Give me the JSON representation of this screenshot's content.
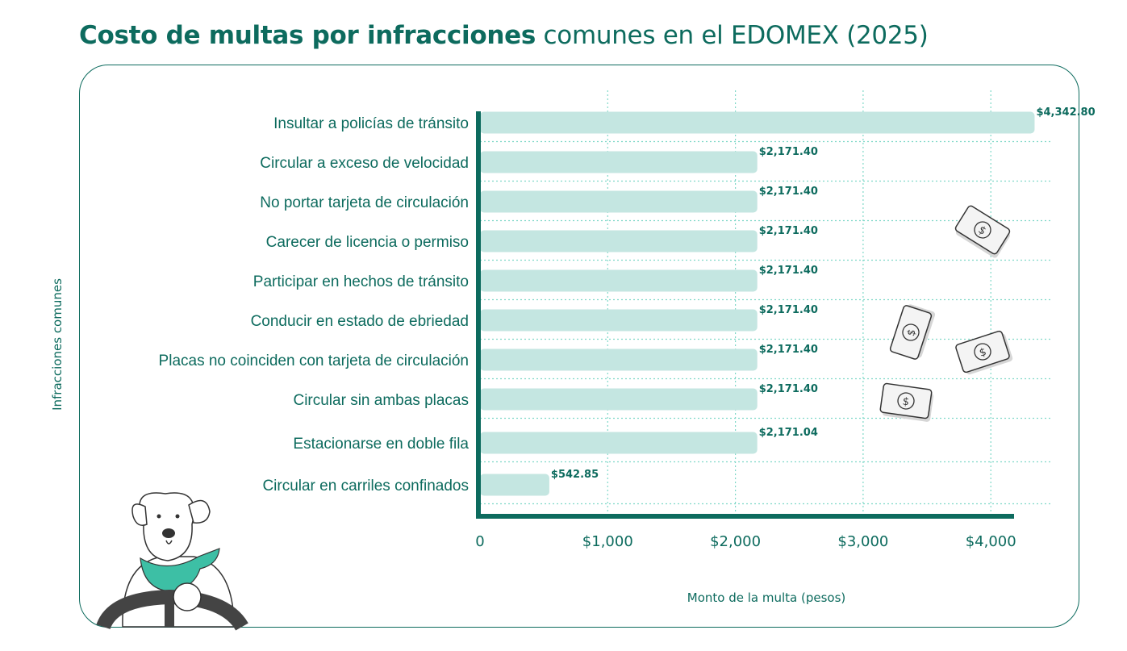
{
  "title_bold": "Costo de multas por infracciones",
  "title_rest": " comunes en el EDOMEX (2025)",
  "colors": {
    "accent": "#0d6b5e",
    "bar": "#c4e6e1",
    "grid": "#7fd8c8",
    "scarf": "#3dbfa5"
  },
  "chart_data": {
    "type": "bar",
    "orientation": "horizontal",
    "title": "Costo de multas por infracciones comunes en el EDOMEX (2025)",
    "xlabel": "Monto de la multa (pesos)",
    "ylabel": "Infracciones comunes",
    "xlim": [
      0,
      4500
    ],
    "grid": true,
    "categories": [
      "Insultar a policías de tránsito",
      "Circular a exceso de velocidad",
      "No portar tarjeta de circulación",
      "Carecer de licencia o permiso",
      "Participar en hechos de tránsito",
      "Conducir en estado de ebriedad",
      "Placas no coinciden con tarjeta de circulación",
      "Circular sin ambas placas",
      "Estacionarse en doble fila",
      "Circular en carriles confinados"
    ],
    "values": [
      4342.8,
      2171.4,
      2171.4,
      2171.4,
      2171.4,
      2171.4,
      2171.4,
      2171.4,
      2171.04,
      542.85
    ],
    "value_labels": [
      "$4,342.80",
      "$2,171.40",
      "$2,171.40",
      "$2,171.40",
      "$2,171.40",
      "$2,171.40",
      "$2,171.40",
      "$2,171.40",
      "$2,171.04",
      "$542.85"
    ],
    "x_ticks": [
      0,
      1000,
      2000,
      3000,
      4000
    ],
    "x_tick_labels": [
      "0",
      "$1,000",
      "$2,000",
      "$3,000",
      "$4,000"
    ]
  }
}
